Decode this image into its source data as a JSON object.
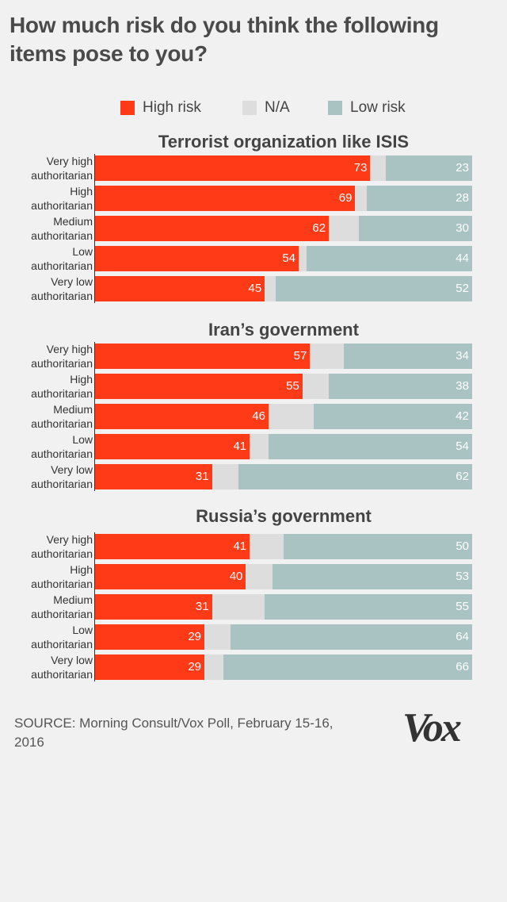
{
  "title": "How much risk do you think the following items pose to you?",
  "legend": [
    {
      "label": "High risk",
      "color": "#ff3a17"
    },
    {
      "label": "N/A",
      "color": "#dcdddc"
    },
    {
      "label": "Low risk",
      "color": "#a9c3c2"
    }
  ],
  "source": "SOURCE: Morning Consult/Vox Poll, February 15-16, 2016",
  "logo_text": "Vox",
  "chart_data": [
    {
      "type": "bar",
      "title": "Terrorist organization like ISIS",
      "categories": [
        "Very high authoritarian",
        "High authoritarian",
        "Medium authoritarian",
        "Low authoritarian",
        "Very low authoritarian"
      ],
      "series": [
        {
          "name": "High risk",
          "values": [
            73,
            69,
            62,
            54,
            45
          ]
        },
        {
          "name": "N/A",
          "values": [
            4,
            3,
            8,
            2,
            3
          ]
        },
        {
          "name": "Low risk",
          "values": [
            23,
            28,
            30,
            44,
            52
          ]
        }
      ]
    },
    {
      "type": "bar",
      "title": "Iran’s government",
      "categories": [
        "Very high authoritarian",
        "High authoritarian",
        "Medium authoritarian",
        "Low authoritarian",
        "Very low authoritarian"
      ],
      "series": [
        {
          "name": "High risk",
          "values": [
            57,
            55,
            46,
            41,
            31
          ]
        },
        {
          "name": "N/A",
          "values": [
            9,
            7,
            12,
            5,
            7
          ]
        },
        {
          "name": "Low risk",
          "values": [
            34,
            38,
            42,
            54,
            62
          ]
        }
      ]
    },
    {
      "type": "bar",
      "title": "Russia’s government",
      "categories": [
        "Very high authoritarian",
        "High authoritarian",
        "Medium authoritarian",
        "Low authoritarian",
        "Very low authoritarian"
      ],
      "series": [
        {
          "name": "High risk",
          "values": [
            41,
            40,
            31,
            29,
            29
          ]
        },
        {
          "name": "N/A",
          "values": [
            9,
            7,
            14,
            7,
            5
          ]
        },
        {
          "name": "Low risk",
          "values": [
            50,
            53,
            55,
            64,
            66
          ]
        }
      ]
    }
  ]
}
